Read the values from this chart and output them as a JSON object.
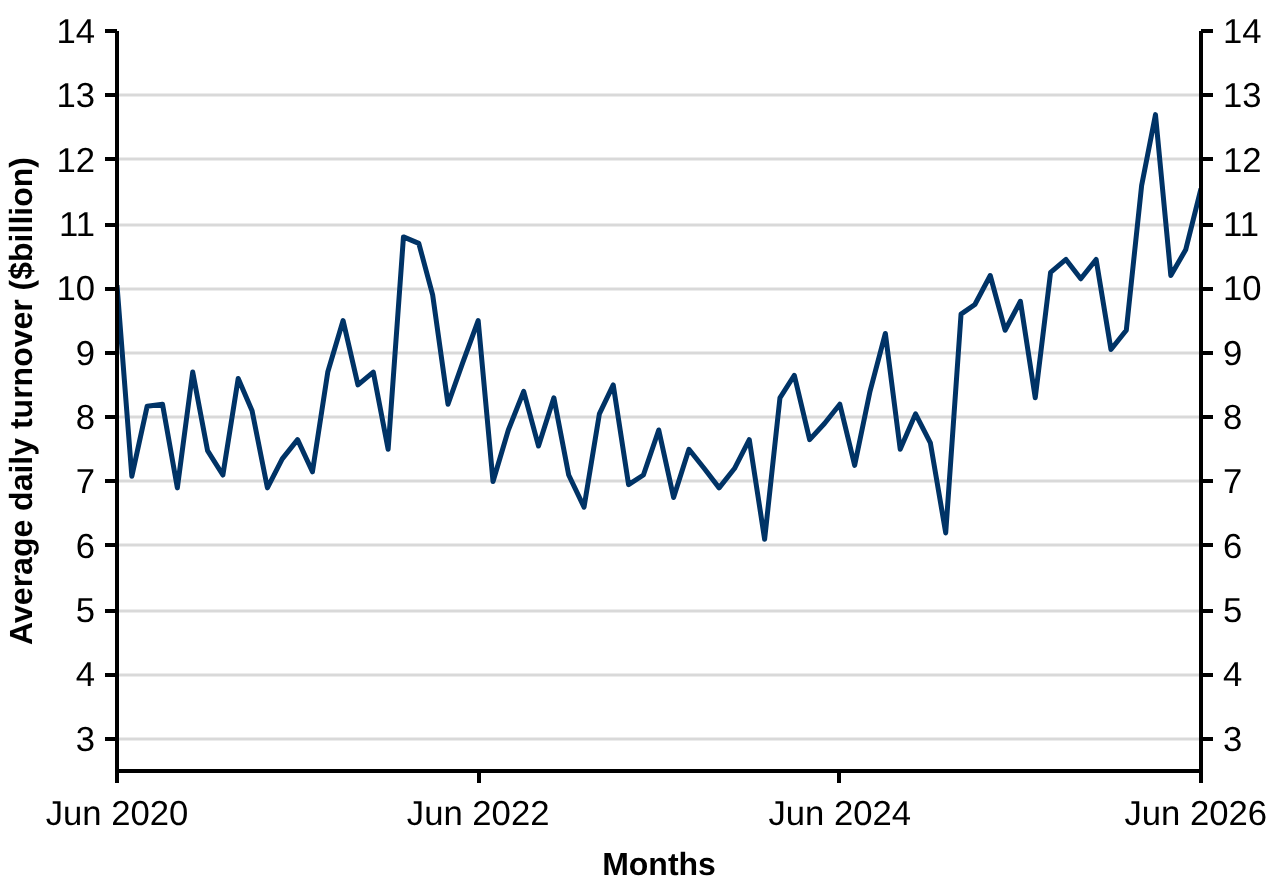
{
  "chart_data": {
    "type": "line",
    "xlabel": "Months",
    "ylabel": "Average daily turnover ($billion)",
    "x": [
      "2020-06",
      "2020-07",
      "2020-08",
      "2020-09",
      "2020-10",
      "2020-11",
      "2020-12",
      "2021-01",
      "2021-02",
      "2021-03",
      "2021-04",
      "2021-05",
      "2021-06",
      "2021-07",
      "2021-08",
      "2021-09",
      "2021-10",
      "2021-11",
      "2021-12",
      "2022-01",
      "2022-02",
      "2022-03",
      "2022-04",
      "2022-05",
      "2022-06",
      "2022-07",
      "2022-08",
      "2022-09",
      "2022-10",
      "2022-11",
      "2022-12",
      "2023-01",
      "2023-02",
      "2023-03",
      "2023-04",
      "2023-05",
      "2023-06",
      "2023-07",
      "2023-08",
      "2023-09",
      "2023-10",
      "2023-11",
      "2023-12",
      "2024-01",
      "2024-02",
      "2024-03",
      "2024-04",
      "2024-05",
      "2024-06",
      "2024-07",
      "2024-08",
      "2024-09",
      "2024-10",
      "2024-11",
      "2024-12",
      "2025-01",
      "2025-02",
      "2025-03",
      "2025-04",
      "2025-05",
      "2025-06",
      "2025-07",
      "2025-08",
      "2025-09",
      "2025-10",
      "2025-11",
      "2025-12",
      "2026-01",
      "2026-02",
      "2026-03",
      "2026-04",
      "2026-05",
      "2026-06"
    ],
    "series": [
      {
        "color": "#003366",
        "values": [
          10.05,
          7.08,
          8.17,
          8.2,
          6.9,
          8.7,
          7.48,
          7.1,
          8.6,
          8.1,
          6.9,
          7.35,
          7.65,
          7.15,
          8.7,
          9.5,
          8.5,
          8.7,
          7.5,
          10.8,
          10.7,
          9.9,
          8.2,
          8.85,
          9.5,
          7.0,
          7.8,
          8.4,
          7.55,
          8.3,
          7.1,
          6.6,
          8.05,
          8.5,
          6.95,
          7.1,
          7.8,
          6.75,
          7.5,
          7.2,
          6.9,
          7.2,
          7.65,
          6.1,
          8.3,
          8.65,
          7.65,
          7.9,
          8.2,
          7.25,
          8.4,
          9.3,
          7.5,
          8.05,
          7.6,
          6.2,
          9.6,
          9.75,
          10.2,
          9.35,
          9.8,
          8.3,
          10.25,
          10.45,
          10.15,
          10.45,
          9.05,
          9.35,
          11.6,
          12.7,
          10.2,
          10.6,
          11.55
        ]
      }
    ],
    "xlim": [
      "2020-06",
      "2026-06"
    ],
    "xticks": [
      {
        "value": "2020-06",
        "label": "Jun 2020"
      },
      {
        "value": "2022-06",
        "label": "Jun 2022"
      },
      {
        "value": "2024-06",
        "label": "Jun 2024"
      },
      {
        "value": "2026-06",
        "label": "Jun 2026"
      }
    ],
    "ylim": [
      2.5,
      14
    ],
    "yticks": [
      3,
      4,
      5,
      6,
      7,
      8,
      9,
      10,
      11,
      12,
      13,
      14
    ],
    "y2lim": [
      2.5,
      14
    ],
    "y2ticks": [
      3,
      4,
      5,
      6,
      7,
      8,
      9,
      10,
      11,
      12,
      13,
      14
    ],
    "grid": "y",
    "marker": "none",
    "line_style": "solid"
  }
}
